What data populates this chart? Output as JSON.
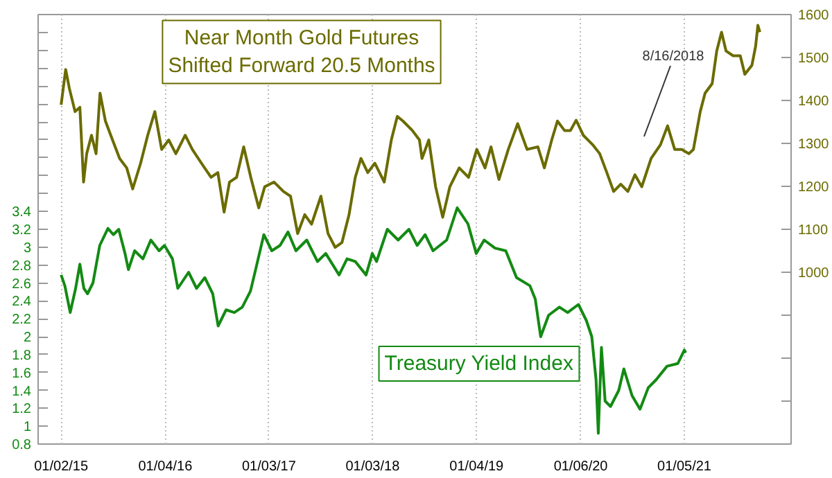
{
  "chart_data": {
    "type": "line",
    "x": [
      "2015-01-02",
      "2015-01-15",
      "2015-02-03",
      "2015-02-22",
      "2015-03-09",
      "2015-03-23",
      "2015-04-05",
      "2015-04-24",
      "2015-05-18",
      "2015-06-16",
      "2015-07-05",
      "2015-07-24",
      "2015-08-15",
      "2015-08-27",
      "2015-09-18",
      "2015-10-17",
      "2015-11-14",
      "2015-12-13",
      "2016-01-01",
      "2016-01-29",
      "2016-02-17",
      "2016-03-26",
      "2016-04-23",
      "2016-05-22",
      "2016-06-19",
      "2016-07-08",
      "2016-08-05",
      "2016-09-03",
      "2016-10-01",
      "2016-10-30",
      "2016-11-17",
      "2016-12-16",
      "2017-01-13",
      "2017-02-11",
      "2017-03-11",
      "2017-04-08",
      "2017-05-16",
      "2017-06-23",
      "2017-07-22",
      "2017-09-07",
      "2017-10-05",
      "2017-11-03",
      "2017-12-11",
      "2018-01-02",
      "2018-01-17",
      "2018-02-24",
      "2018-04-03",
      "2018-05-11",
      "2018-06-09",
      "2018-07-07",
      "2018-08-04",
      "2018-09-21",
      "2018-10-28",
      "2018-11-16",
      "2018-12-05",
      "2019-01-03",
      "2019-01-31",
      "2019-03-10",
      "2019-04-17",
      "2019-05-25",
      "2019-07-11",
      "2019-07-30",
      "2019-08-18",
      "2019-09-15",
      "2019-10-23",
      "2019-11-21",
      "2019-12-29",
      "2020-01-26",
      "2020-02-14",
      "2020-02-29",
      "2020-03-08",
      "2020-03-19",
      "2020-04-01",
      "2020-04-20",
      "2020-05-19",
      "2020-06-06",
      "2020-07-05",
      "2020-08-02",
      "2020-08-31",
      "2020-09-28",
      "2020-11-05",
      "2020-12-13",
      "2021-01-05",
      "2021-01-10"
    ],
    "series": [
      {
        "name": "Near Month Gold Futures\nShifted Forward 20.5 Months",
        "color": "#6b6b00",
        "axis": "y2",
        "x": [
          "2015-01-02",
          "2015-01-18",
          "2015-01-31",
          "2015-02-20",
          "2015-03-09",
          "2015-03-22",
          "2015-04-02",
          "2015-04-19",
          "2015-05-05",
          "2015-05-19",
          "2015-06-07",
          "2015-07-02",
          "2015-07-27",
          "2015-08-21",
          "2015-09-11",
          "2015-10-09",
          "2015-11-03",
          "2015-11-28",
          "2015-12-22",
          "2016-01-16",
          "2016-02-10",
          "2016-03-14",
          "2016-04-08",
          "2016-05-10",
          "2016-06-13",
          "2016-07-07",
          "2016-07-29",
          "2016-08-17",
          "2016-09-11",
          "2016-10-06",
          "2016-10-31",
          "2016-11-28",
          "2016-12-19",
          "2017-01-21",
          "2017-02-23",
          "2017-03-20",
          "2017-04-14",
          "2017-05-09",
          "2017-06-02",
          "2017-07-05",
          "2017-07-30",
          "2017-08-24",
          "2017-09-17",
          "2017-10-12",
          "2017-11-03",
          "2017-11-23",
          "2017-12-17",
          "2018-01-11",
          "2018-02-13",
          "2018-03-10",
          "2018-03-31",
          "2018-04-20",
          "2018-05-23",
          "2018-06-17",
          "2018-06-26",
          "2018-07-20",
          "2018-08-13",
          "2018-09-07",
          "2018-10-02",
          "2018-11-04",
          "2018-12-07",
          "2019-01-05",
          "2019-02-03",
          "2019-02-24",
          "2019-03-24",
          "2019-04-26",
          "2019-05-29",
          "2019-07-01",
          "2019-08-08",
          "2019-08-31",
          "2019-09-26",
          "2019-10-16",
          "2019-11-10",
          "2019-12-01",
          "2019-12-21",
          "2020-01-15",
          "2020-02-17",
          "2020-03-13",
          "2020-04-07",
          "2020-05-01",
          "2020-05-26",
          "2020-06-20",
          "2020-07-15",
          "2020-08-08",
          "2020-09-10",
          "2020-10-13",
          "2020-11-07",
          "2020-12-02",
          "2020-12-27",
          "2021-01-21",
          "2021-02-06",
          "2021-03-02",
          "2021-03-19",
          "2021-04-13",
          "2021-04-29",
          "2021-05-16",
          "2021-06-01",
          "2021-06-26",
          "2021-07-21",
          "2021-08-06",
          "2021-08-31",
          "2021-09-13",
          "2021-09-21",
          "2021-09-28"
        ],
        "values": [
          1390,
          1472,
          1428,
          1374,
          1384,
          1210,
          1276,
          1319,
          1276,
          1417,
          1352,
          1308,
          1265,
          1243,
          1194,
          1254,
          1319,
          1374,
          1286,
          1308,
          1276,
          1319,
          1286,
          1254,
          1221,
          1232,
          1140,
          1210,
          1221,
          1292,
          1221,
          1150,
          1199,
          1210,
          1188,
          1177,
          1090,
          1134,
          1112,
          1177,
          1090,
          1058,
          1069,
          1134,
          1221,
          1265,
          1232,
          1254,
          1210,
          1308,
          1363,
          1352,
          1330,
          1308,
          1265,
          1308,
          1199,
          1128,
          1199,
          1243,
          1221,
          1286,
          1243,
          1292,
          1216,
          1286,
          1346,
          1286,
          1292,
          1243,
          1308,
          1352,
          1330,
          1330,
          1354,
          1319,
          1297,
          1276,
          1232,
          1188,
          1205,
          1188,
          1227,
          1199,
          1265,
          1297,
          1341,
          1286,
          1286,
          1276,
          1286,
          1374,
          1417,
          1439,
          1515,
          1559,
          1515,
          1504,
          1504,
          1461,
          1482,
          1526,
          1575,
          1559
        ]
      },
      {
        "name": "Treasury Yield Index",
        "color": "#138a13",
        "values": [
          2.69,
          2.57,
          2.27,
          2.54,
          2.81,
          2.54,
          2.48,
          2.6,
          3.02,
          3.21,
          3.14,
          3.2,
          2.93,
          2.75,
          2.96,
          2.87,
          3.08,
          2.96,
          3.02,
          2.87,
          2.54,
          2.72,
          2.54,
          2.66,
          2.48,
          2.12,
          2.3,
          2.27,
          2.33,
          2.51,
          2.75,
          3.14,
          2.96,
          3.02,
          3.17,
          2.96,
          3.08,
          2.84,
          2.93,
          2.69,
          2.87,
          2.84,
          2.69,
          2.93,
          2.84,
          3.2,
          3.08,
          3.2,
          3.02,
          3.14,
          2.96,
          3.08,
          3.44,
          3.35,
          3.26,
          2.93,
          3.08,
          2.99,
          2.96,
          2.66,
          2.57,
          2.42,
          2.0,
          2.24,
          2.33,
          2.27,
          2.36,
          2.18,
          2.0,
          1.52,
          0.92,
          1.88,
          1.28,
          1.22,
          1.4,
          1.64,
          1.34,
          1.19,
          1.43,
          1.52,
          1.67,
          1.7,
          1.85,
          1.82
        ]
      }
    ],
    "xlim": [
      "2014-10-13",
      "2022-01-16"
    ],
    "xticks": [
      {
        "value": "2015-01-02",
        "label": "01/02/15"
      },
      {
        "value": "2016-01-04",
        "label": "01/04/16"
      },
      {
        "value": "2017-01-03",
        "label": "01/03/17"
      },
      {
        "value": "2018-01-03",
        "label": "01/03/18"
      },
      {
        "value": "2019-01-04",
        "label": "01/04/19"
      },
      {
        "value": "2020-01-06",
        "label": "01/06/20"
      },
      {
        "value": "2021-01-05",
        "label": "01/05/21"
      }
    ],
    "ylim": [
      0.8,
      5.6
    ],
    "yticks": [
      0.8,
      1,
      1.2,
      1.4,
      1.6,
      1.8,
      2,
      2.2,
      2.4,
      2.6,
      2.8,
      3,
      3.2,
      3.4,
      {
        "value": 3.6,
        "label": null
      },
      {
        "value": 3.8,
        "label": null
      },
      {
        "value": 4.0,
        "label": null
      },
      {
        "value": 4.2,
        "label": null
      },
      {
        "value": 4.4,
        "label": null
      },
      {
        "value": 4.6,
        "label": null
      },
      {
        "value": 4.8,
        "label": null
      },
      {
        "value": 5.0,
        "label": null
      },
      {
        "value": 5.2,
        "label": null
      },
      {
        "value": 5.4,
        "label": null
      }
    ],
    "y2lim": [
      600,
      1600
    ],
    "y2ticks": [
      {
        "value": 700,
        "label": null
      },
      {
        "value": 800,
        "label": null
      },
      {
        "value": 900,
        "label": null
      },
      1000,
      1100,
      1200,
      1300,
      1400,
      1500,
      1600
    ],
    "annotations": [
      "8/16/2018"
    ],
    "grid": "x",
    "legend": false,
    "line_style": "solid"
  }
}
